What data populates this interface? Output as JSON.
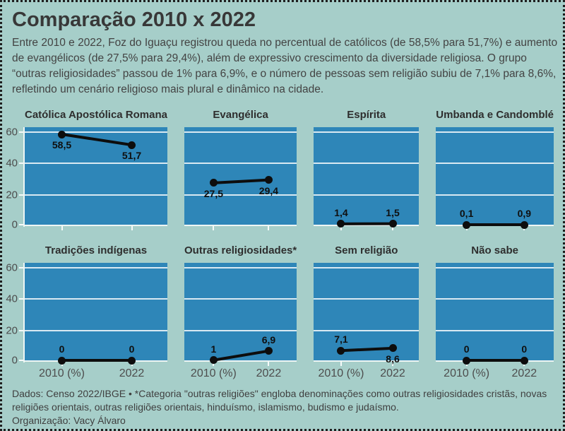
{
  "header": {
    "title": "Comparação 2010 x 2022",
    "description": "Entre 2010 e 2022, Foz do Iguaçu registrou queda no percentual de católicos (de 58,5% para 51,7%) e aumento de evangélicos (de 27,5% para 29,4%), além de expressivo crescimento da diversidade religiosa. O grupo “outras religiosidades” passou de 1% para 6,9%, e o número de pessoas sem religião subiu de 7,1% para 8,6%, refletindo um cenário religioso mais plural e dinâmico na cidade."
  },
  "chart_data": {
    "type": "line",
    "x_categories": [
      "2010",
      "2022"
    ],
    "x_axis_labels": [
      "2010 (%)",
      "2022"
    ],
    "ylim": [
      0,
      63
    ],
    "yticks": [
      0,
      20,
      40,
      60
    ],
    "grid": true,
    "legend": "none",
    "facets": [
      {
        "title": "Católica Apostólica Romana",
        "values": [
          58.5,
          51.7
        ],
        "value_labels": [
          "58,5",
          "51,7"
        ],
        "label_side": [
          "below",
          "below"
        ]
      },
      {
        "title": "Evangélica",
        "values": [
          27.5,
          29.4
        ],
        "value_labels": [
          "27,5",
          "29,4"
        ],
        "label_side": [
          "below",
          "below"
        ]
      },
      {
        "title": "Espírita",
        "values": [
          1.4,
          1.5
        ],
        "value_labels": [
          "1,4",
          "1,5"
        ],
        "label_side": [
          "above",
          "above"
        ]
      },
      {
        "title": "Umbanda e Candomblé",
        "values": [
          0.1,
          0.9
        ],
        "value_labels": [
          "0,1",
          "0,9"
        ],
        "label_side": [
          "above",
          "above"
        ]
      },
      {
        "title": "Tradições indígenas",
        "values": [
          0,
          0
        ],
        "value_labels": [
          "0",
          "0"
        ],
        "label_side": [
          "above",
          "above"
        ]
      },
      {
        "title": "Outras religiosidades*",
        "values": [
          1,
          6.9
        ],
        "value_labels": [
          "1",
          "6,9"
        ],
        "label_side": [
          "above",
          "above"
        ]
      },
      {
        "title": "Sem religião",
        "values": [
          7.1,
          8.6
        ],
        "value_labels": [
          "7,1",
          "8,6"
        ],
        "label_side": [
          "above",
          "below"
        ]
      },
      {
        "title": "Não sabe",
        "values": [
          0,
          0
        ],
        "value_labels": [
          "0",
          "0"
        ],
        "label_side": [
          "above",
          "above"
        ]
      }
    ]
  },
  "footer": {
    "source_note": "Dados: Censo 2022/IBGE • *Categoria \"outras religiões\" engloba denominações como outras religiosidades cristãs, novas religiões orientais, outras religiões orientais, hinduísmo, islamismo, budismo e judaísmo.",
    "organization": "Organização: Vacy Álvaro"
  },
  "colors": {
    "page_background": "#a6cec9",
    "plot_background": "#2e86b8",
    "gridline": "#e9f3f1",
    "data_line": "#0d0d0d",
    "text": "#3b3b3b",
    "axis_text": "#4d4d4d",
    "border": "#1f1f1f"
  }
}
